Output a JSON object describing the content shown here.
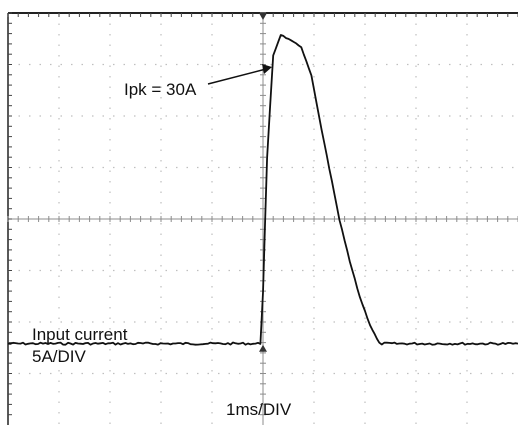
{
  "chart_data": {
    "type": "line",
    "title": "",
    "peak_annotation": "Ipk = 30A",
    "channel_label": "Input current",
    "vertical_scale_label": "5A/DIV",
    "horizontal_scale_label": "1ms/DIV",
    "units": {
      "x": "ms",
      "y": "A"
    },
    "x_per_div": 1,
    "y_per_div": 5,
    "grid": true,
    "grid_divisions": {
      "horizontal": 10,
      "vertical": 8
    },
    "xlim": [
      -5,
      5
    ],
    "ylim": [
      -7.9,
      32.1
    ],
    "series": [
      {
        "points": [
          [
            -5.0,
            0.0
          ],
          [
            -0.05,
            0.0
          ],
          [
            0.0,
            5.0
          ],
          [
            0.08,
            18.0
          ],
          [
            0.2,
            28.0
          ],
          [
            0.35,
            30.0
          ],
          [
            0.55,
            29.4
          ],
          [
            0.75,
            28.8
          ],
          [
            0.95,
            26.0
          ],
          [
            1.1,
            22.0
          ],
          [
            1.3,
            17.0
          ],
          [
            1.5,
            12.0
          ],
          [
            1.7,
            8.0
          ],
          [
            1.9,
            4.5
          ],
          [
            2.1,
            1.8
          ],
          [
            2.28,
            0.0
          ],
          [
            5.0,
            0.0
          ]
        ]
      }
    ],
    "colors": {
      "trace": "#111111",
      "grid": "#bfbfbf",
      "axis": "#8c8c8c",
      "background": "#ffffff"
    }
  }
}
